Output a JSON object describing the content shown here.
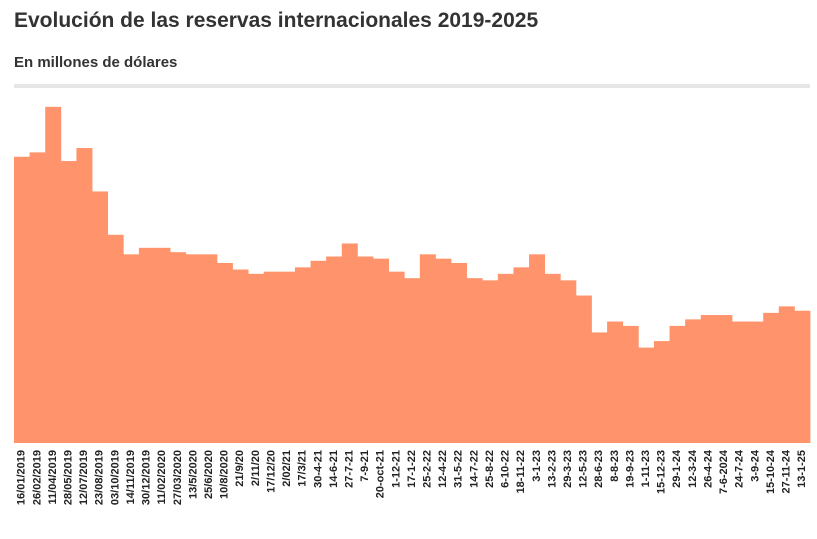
{
  "chart_data": {
    "type": "bar",
    "title": "Evolución de las reservas internacionales 2019-2025",
    "subtitle": "En millones de dólares",
    "color": "#ff946c",
    "ylim": [
      0,
      80000
    ],
    "categories": [
      "16/01/2019",
      "26/02/2019",
      "11/04/2019",
      "28/05/2019",
      "12/07/2019",
      "23/08/2019",
      "03/10/2019",
      "14/11/2019",
      "30/12/2019",
      "11/02/2020",
      "27/03/2020",
      "13/5/2020",
      "25/6/2020",
      "10/8/2020",
      "21/9/20",
      "2/11/20",
      "17/12/20",
      "2/02/21",
      "17/3/21",
      "30-4-21",
      "14-6-21",
      "27-7-21",
      "7-9-21",
      "20-oct-21",
      "1-12-21",
      "17-1-22",
      "25-2-22",
      "12-4-22",
      "31-5-22",
      "14-7-22",
      "25-8-22",
      "6-10-22",
      "18-11-22",
      "3-1-23",
      "13-2-23",
      "29-3-23",
      "12-5-23",
      "28-6-23",
      "8-8-23",
      "19-9-23",
      "1-11-23",
      "15-12-23",
      "29-1-24",
      "12-3-24",
      "26-4-24",
      "7-6-2024",
      "24-7-24",
      "3-9-24",
      "15-10-24",
      "27-11-24",
      "13-1-25"
    ],
    "values": [
      66000,
      67000,
      77500,
      65000,
      68000,
      58000,
      48000,
      43500,
      45000,
      45000,
      44000,
      43500,
      43500,
      41500,
      40000,
      39000,
      39500,
      39500,
      40500,
      42000,
      43000,
      46000,
      43000,
      42500,
      39500,
      38000,
      43500,
      42500,
      41500,
      38000,
      37500,
      39000,
      40500,
      43500,
      39000,
      37500,
      34000,
      25500,
      28000,
      27000,
      22000,
      23500,
      27000,
      28500,
      29500,
      29500,
      28000,
      28000,
      30000,
      31500,
      30500
    ]
  }
}
